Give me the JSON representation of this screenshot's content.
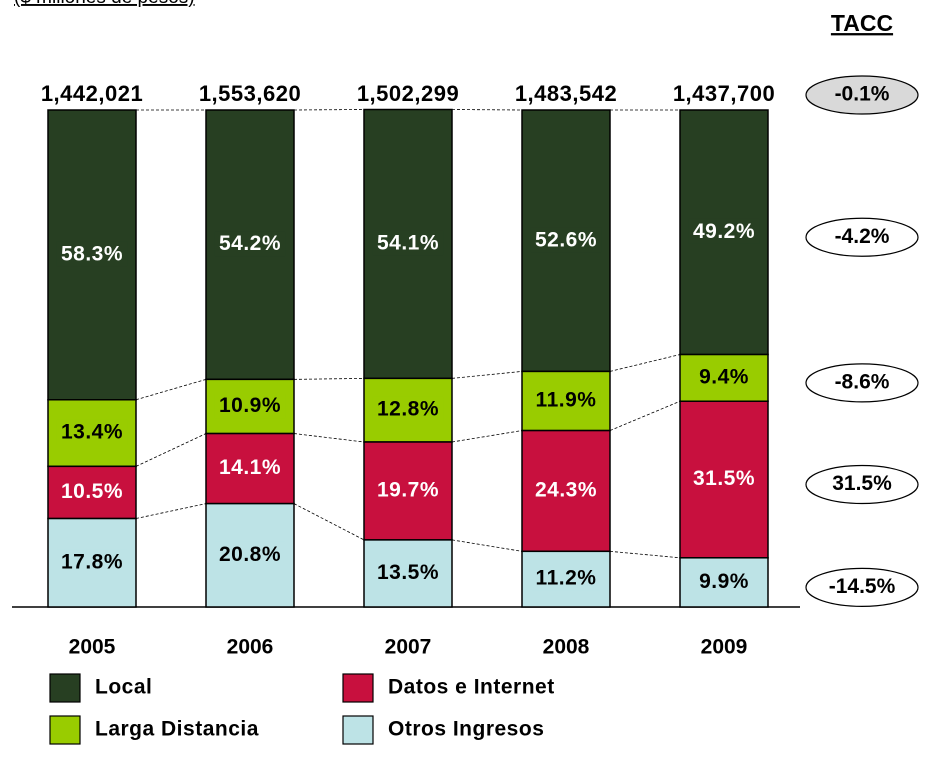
{
  "chart_data": {
    "type": "stacked_bar",
    "subtitle": "($ millones de pesos)",
    "categories": [
      "2005",
      "2006",
      "2007",
      "2008",
      "2009"
    ],
    "ylim": [
      0,
      100
    ],
    "series": [
      {
        "name": "Local",
        "color": "#273f22",
        "text_color": "#ffffff",
        "values": [
          58.3,
          54.2,
          54.1,
          52.6,
          49.2
        ],
        "value_labels": [
          "58.3%",
          "54.2%",
          "54.1%",
          "52.6%",
          "49.2%"
        ]
      },
      {
        "name": "Larga Distancia",
        "color": "#99cc00",
        "text_color": "#000000",
        "values": [
          13.4,
          10.9,
          12.8,
          11.9,
          9.4
        ],
        "value_labels": [
          "13.4%",
          "10.9%",
          "12.8%",
          "11.9%",
          "9.4%"
        ]
      },
      {
        "name": "Datos e Internet",
        "color": "#c8103e",
        "text_color": "#ffffff",
        "values": [
          10.5,
          14.1,
          19.7,
          24.3,
          31.5
        ],
        "value_labels": [
          "10.5%",
          "14.1%",
          "19.7%",
          "24.3%",
          "31.5%"
        ]
      },
      {
        "name": "Otros Ingresos",
        "color": "#bde3e6",
        "text_color": "#000000",
        "values": [
          17.8,
          20.8,
          13.5,
          11.2,
          9.9
        ],
        "value_labels": [
          "17.8%",
          "20.8%",
          "13.5%",
          "11.2%",
          "9.9%"
        ]
      }
    ],
    "totals": [
      {
        "value": 1442021,
        "label": "1,442,021"
      },
      {
        "value": 1553620,
        "label": "1,553,620"
      },
      {
        "value": 1502299,
        "label": "1,502,299"
      },
      {
        "value": 1483542,
        "label": "1,483,542"
      },
      {
        "value": 1437700,
        "label": "1,437,700"
      }
    ],
    "tacc": {
      "title": "TACC",
      "values": [
        -0.1,
        -4.2,
        -8.6,
        31.5,
        -14.5
      ],
      "value_labels": [
        "-0.1%",
        "-4.2%",
        "-8.6%",
        "31.5%",
        "-14.5%"
      ]
    }
  }
}
